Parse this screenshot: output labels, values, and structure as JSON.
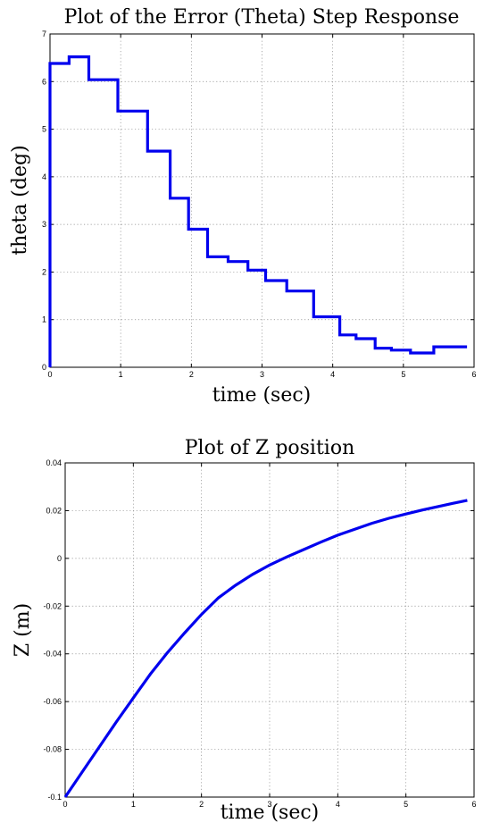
{
  "chart_data": [
    {
      "type": "line",
      "step": true,
      "title": "Plot of the Error (Theta) Step Response",
      "xlabel": "time (sec)",
      "ylabel": "theta (deg)",
      "xlim": [
        0,
        6
      ],
      "ylim": [
        0,
        7
      ],
      "xticks": [
        0,
        1,
        2,
        3,
        4,
        5,
        6
      ],
      "yticks": [
        0,
        1,
        2,
        3,
        4,
        5,
        6,
        7
      ],
      "grid": true,
      "color": "#0000ee",
      "series": [
        {
          "x": [
            0,
            0,
            0.27,
            0.55,
            0.96,
            1.38,
            1.7,
            1.96,
            2.23,
            2.52,
            2.8,
            3.05,
            3.35,
            3.73,
            4.1,
            4.33,
            4.6,
            4.83,
            5.1,
            5.43,
            5.9
          ],
          "y": [
            0,
            6.38,
            6.52,
            6.04,
            5.38,
            4.54,
            3.55,
            2.9,
            2.32,
            2.22,
            2.04,
            1.82,
            1.6,
            1.06,
            0.68,
            0.6,
            0.4,
            0.36,
            0.3,
            0.43,
            0.43
          ]
        }
      ]
    },
    {
      "type": "line",
      "title": "Plot of Z position",
      "xlabel": "time (sec)",
      "ylabel": "Z (m)",
      "xlim": [
        0,
        6
      ],
      "ylim": [
        -0.1,
        0.04
      ],
      "xticks": [
        0,
        1,
        2,
        3,
        4,
        5,
        6
      ],
      "yticks": [
        -0.1,
        -0.08,
        -0.06,
        -0.04,
        -0.02,
        0,
        0.02,
        0.04
      ],
      "ytick_labels": [
        "-0.1",
        "-0.08",
        "-0.06",
        "-0.04",
        "-0.02",
        "0",
        "0.02",
        "0.04"
      ],
      "grid": true,
      "color": "#0000ee",
      "series": [
        {
          "x": [
            0,
            0.25,
            0.5,
            0.75,
            1.0,
            1.25,
            1.5,
            1.75,
            2.0,
            2.25,
            2.5,
            2.75,
            3.0,
            3.25,
            3.5,
            3.75,
            4.0,
            4.25,
            4.5,
            4.75,
            5.0,
            5.25,
            5.5,
            5.75,
            5.9
          ],
          "y": [
            -0.1,
            -0.0895,
            -0.079,
            -0.0685,
            -0.0585,
            -0.0485,
            -0.0395,
            -0.0313,
            -0.0235,
            -0.0165,
            -0.0113,
            -0.0067,
            -0.0028,
            0.0006,
            0.0037,
            0.0068,
            0.0097,
            0.0122,
            0.0147,
            0.0168,
            0.0186,
            0.0203,
            0.0219,
            0.0234,
            0.0243
          ]
        }
      ]
    }
  ]
}
